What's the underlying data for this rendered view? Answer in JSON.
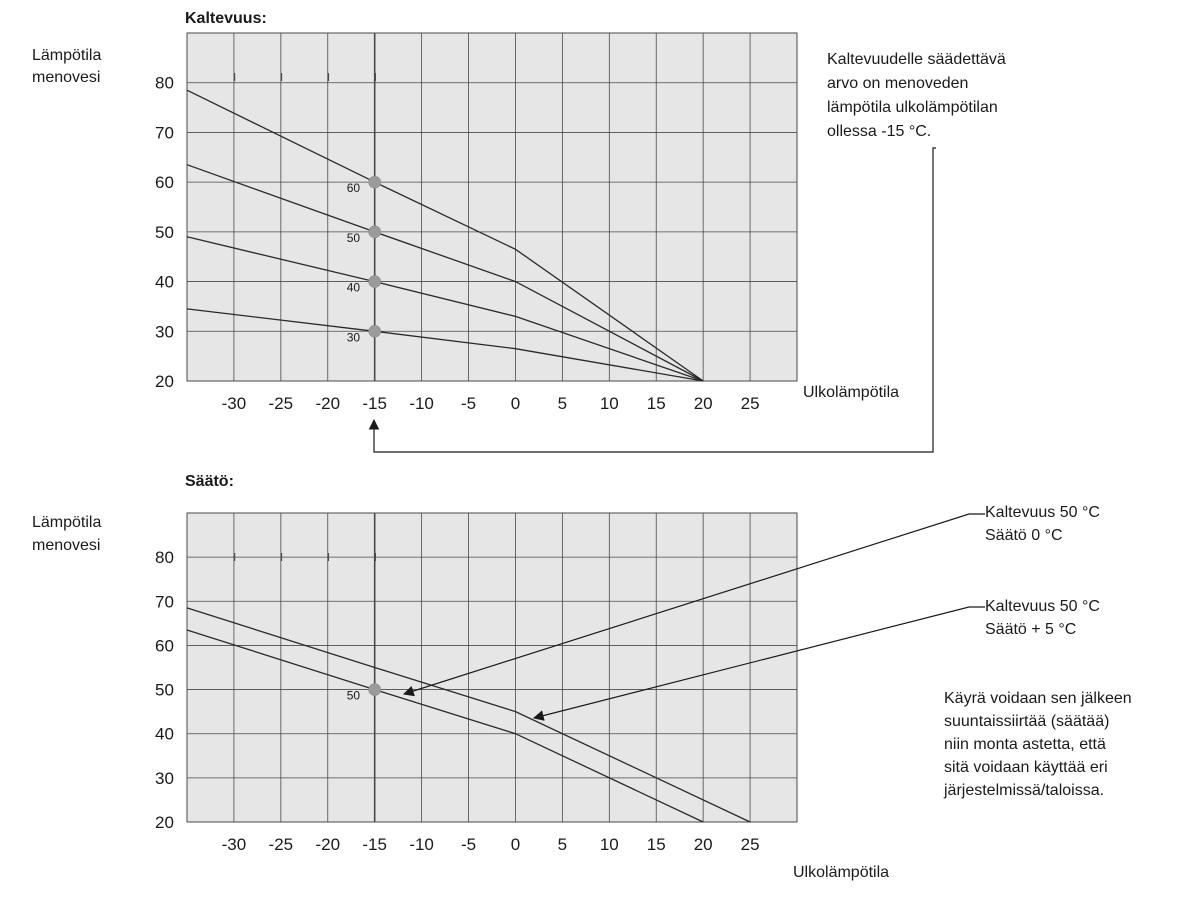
{
  "charts": [
    {
      "title": "Kaltevuus:",
      "ylabel": [
        "Lämpötila",
        "menovesi"
      ],
      "xlabel": "Ulkolämpötila",
      "note": [
        "Kaltevuudelle säädettävä",
        "arvo on menoveden",
        "lämpötila ulkolämpötilan",
        "ollessa -15 °C."
      ]
    },
    {
      "title": "Säätö:",
      "ylabel": [
        "Lämpötila",
        "menovesi"
      ],
      "xlabel": "Ulkolämpötila",
      "callouts": [
        [
          "Kaltevuus 50 °C",
          "Säätö 0 °C"
        ],
        [
          "Kaltevuus 50 °C",
          "Säätö + 5 °C"
        ]
      ],
      "note": [
        "Käyrä voidaan sen jälkeen",
        "suuntaissiirtää (säätää)",
        "niin monta astetta, että",
        "sitä voidaan käyttää eri",
        "järjestelmissä/taloissa."
      ]
    }
  ],
  "chart_data": [
    {
      "type": "line",
      "title": "Kaltevuus:",
      "xlabel": "Ulkolämpötila",
      "ylabel": "Lämpötila menovesi",
      "xticks": [
        -30,
        -25,
        -20,
        -15,
        -10,
        -5,
        0,
        5,
        10,
        15,
        20,
        25
      ],
      "yticks": [
        20,
        30,
        40,
        50,
        60,
        70,
        80
      ],
      "xlim": [
        -35,
        30
      ],
      "ylim": [
        20,
        90
      ],
      "grid": true,
      "series": [
        {
          "name": "30",
          "x": [
            -35,
            -15,
            0,
            20
          ],
          "y": [
            34.5,
            30,
            26.5,
            20
          ]
        },
        {
          "name": "40",
          "x": [
            -35,
            -15,
            0,
            20
          ],
          "y": [
            49,
            40,
            33,
            20
          ]
        },
        {
          "name": "50",
          "x": [
            -35,
            -15,
            0,
            20
          ],
          "y": [
            63.5,
            50,
            40,
            20
          ]
        },
        {
          "name": "60",
          "x": [
            -35,
            -15,
            0,
            20
          ],
          "y": [
            78.5,
            60,
            46.5,
            20
          ]
        }
      ],
      "markers": [
        {
          "label": "60",
          "x": -15,
          "y": 60
        },
        {
          "label": "50",
          "x": -15,
          "y": 50
        },
        {
          "label": "40",
          "x": -15,
          "y": 40
        },
        {
          "label": "30",
          "x": -15,
          "y": 30
        }
      ]
    },
    {
      "type": "line",
      "title": "Säätö:",
      "xlabel": "Ulkolämpötila",
      "ylabel": "Lämpötila menovesi",
      "xticks": [
        -30,
        -25,
        -20,
        -15,
        -10,
        -5,
        0,
        5,
        10,
        15,
        20,
        25
      ],
      "yticks": [
        20,
        30,
        40,
        50,
        60,
        70,
        80
      ],
      "xlim": [
        -35,
        30
      ],
      "ylim": [
        20,
        90
      ],
      "grid": true,
      "series": [
        {
          "name": "Kaltevuus 50 °C Säätö 0 °C",
          "x": [
            -35,
            -15,
            0,
            20
          ],
          "y": [
            63.5,
            50,
            40,
            20
          ]
        },
        {
          "name": "Kaltevuus 50 °C Säätö + 5 °C",
          "x": [
            -35,
            -15,
            0,
            25
          ],
          "y": [
            68.5,
            55,
            45,
            20
          ]
        }
      ],
      "markers": [
        {
          "label": "50",
          "x": -15,
          "y": 50
        }
      ]
    }
  ],
  "colors": {
    "plot_background": "#e6e6e7",
    "grid": "#4a4a4a",
    "line": "#2a2a2a",
    "marker": "#9b9b9c"
  }
}
